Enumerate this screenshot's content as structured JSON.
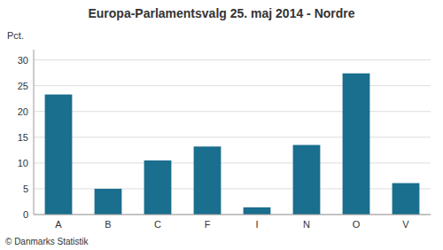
{
  "chart_data": {
    "type": "bar",
    "title": "Europa-Parlamentsvalg 25. maj 2014 - Nordre",
    "y_label": "Pct.",
    "footer": "© Danmarks Statistik",
    "categories": [
      "A",
      "B",
      "C",
      "F",
      "I",
      "N",
      "O",
      "V"
    ],
    "values": [
      23.3,
      5.0,
      10.5,
      13.2,
      1.4,
      13.5,
      27.4,
      6.1
    ],
    "color": "#1a6e8e",
    "ylim": [
      0,
      32
    ],
    "yticks": [
      0,
      5,
      10,
      15,
      20,
      25,
      30
    ],
    "grid": true
  }
}
